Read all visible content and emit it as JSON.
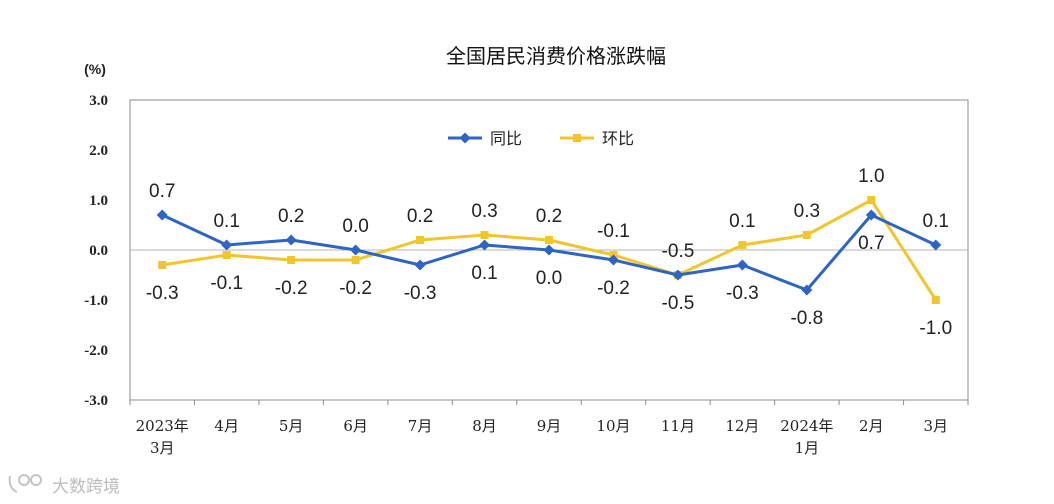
{
  "chart_data": {
    "type": "line",
    "title": "全国居民消费价格涨跌幅",
    "ylabel": "(%)",
    "ylim": [
      -3.0,
      3.0
    ],
    "yticks": [
      "3.0",
      "2.0",
      "1.0",
      "0.0",
      "-1.0",
      "-2.0",
      "-3.0"
    ],
    "categories": [
      [
        "2023年",
        "3月"
      ],
      [
        "4月"
      ],
      [
        "5月"
      ],
      [
        "6月"
      ],
      [
        "7月"
      ],
      [
        "8月"
      ],
      [
        "9月"
      ],
      [
        "10月"
      ],
      [
        "11月"
      ],
      [
        "12月"
      ],
      [
        "2024年",
        "1月"
      ],
      [
        "2月"
      ],
      [
        "3月"
      ]
    ],
    "legend_position": "top-center",
    "grid": false,
    "series": [
      {
        "name": "同比",
        "color": "#2e64c3",
        "marker": "diamond",
        "values": [
          0.7,
          0.1,
          0.2,
          0.0,
          -0.3,
          0.1,
          0.0,
          -0.2,
          -0.5,
          -0.3,
          -0.8,
          0.7,
          0.1
        ],
        "labels": [
          "0.7",
          "0.1",
          "0.2",
          "0.0",
          "-0.3",
          "0.1",
          "0.0",
          "-0.2",
          "-0.5",
          "-0.3",
          "-0.8",
          "0.7",
          "0.1"
        ]
      },
      {
        "name": "环比",
        "color": "#f3c52c",
        "marker": "square",
        "values": [
          -0.3,
          -0.1,
          -0.2,
          -0.2,
          0.2,
          0.3,
          0.2,
          -0.1,
          -0.5,
          0.1,
          0.3,
          1.0,
          -1.0
        ],
        "labels": [
          "-0.3",
          "-0.1",
          "-0.2",
          "-0.2",
          "0.2",
          "0.3",
          "0.2",
          "-0.1",
          "-0.5",
          "0.1",
          "0.3",
          "1.0",
          "-1.0"
        ]
      }
    ]
  },
  "watermark": {
    "text": "大数跨境",
    "icon": "logo-glyph-icon"
  }
}
